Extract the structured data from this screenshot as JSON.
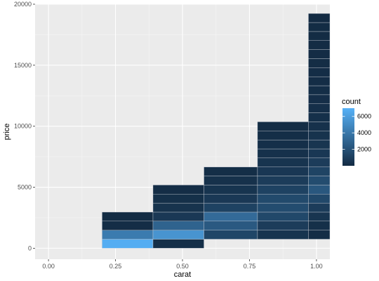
{
  "chart_data": {
    "type": "heatmap",
    "title": "",
    "xlabel": "carat",
    "ylabel": "price",
    "xlim": [
      -0.05,
      1.05
    ],
    "ylim": [
      -900,
      20000
    ],
    "x_ticks": [
      0.0,
      0.25,
      0.5,
      0.75,
      1.0
    ],
    "x_tick_labels": [
      "0.00",
      "0.25",
      "0.50",
      "0.75",
      "1.00"
    ],
    "y_ticks": [
      0,
      5000,
      10000,
      15000,
      20000
    ],
    "y_tick_labels": [
      "0",
      "5000",
      "10000",
      "15000",
      "20000"
    ],
    "grid": true,
    "legend": {
      "title": "count",
      "placement": "right",
      "min": 1,
      "max": 7000,
      "ticks": [
        2000,
        4000,
        6000
      ],
      "tick_labels": [
        "2000",
        "4000",
        "6000"
      ],
      "low_color": "#132b43",
      "high_color": "#56b1f7"
    },
    "tile_height": 740,
    "columns": [
      {
        "x_start": 0.2,
        "x_end": 0.39,
        "tiles": [
          {
            "y_start": 0,
            "count": 6800
          },
          {
            "y_start": 740,
            "count": 4200
          },
          {
            "y_start": 1480,
            "count": 120
          },
          {
            "y_start": 2220,
            "count": 40
          }
        ]
      },
      {
        "x_start": 0.39,
        "x_end": 0.58,
        "tiles": [
          {
            "y_start": 0,
            "count": 200
          },
          {
            "y_start": 740,
            "count": 5500
          },
          {
            "y_start": 1480,
            "count": 2900
          },
          {
            "y_start": 2220,
            "count": 700
          },
          {
            "y_start": 2960,
            "count": 400
          },
          {
            "y_start": 3700,
            "count": 250
          },
          {
            "y_start": 4440,
            "count": 120
          }
        ]
      },
      {
        "x_start": 0.58,
        "x_end": 0.78,
        "tiles": [
          {
            "y_start": 740,
            "count": 1400
          },
          {
            "y_start": 1480,
            "count": 2400
          },
          {
            "y_start": 2220,
            "count": 3300
          },
          {
            "y_start": 2960,
            "count": 1200
          },
          {
            "y_start": 3700,
            "count": 700
          },
          {
            "y_start": 4440,
            "count": 450
          },
          {
            "y_start": 5180,
            "count": 300
          },
          {
            "y_start": 5920,
            "count": 150
          }
        ]
      },
      {
        "x_start": 0.78,
        "x_end": 0.97,
        "tiles": [
          {
            "y_start": 740,
            "count": 450
          },
          {
            "y_start": 1480,
            "count": 900
          },
          {
            "y_start": 2220,
            "count": 1500
          },
          {
            "y_start": 2960,
            "count": 1700
          },
          {
            "y_start": 3700,
            "count": 1600
          },
          {
            "y_start": 4440,
            "count": 1200
          },
          {
            "y_start": 5180,
            "count": 900
          },
          {
            "y_start": 5920,
            "count": 650
          },
          {
            "y_start": 6660,
            "count": 450
          },
          {
            "y_start": 7400,
            "count": 330
          },
          {
            "y_start": 8140,
            "count": 220
          },
          {
            "y_start": 8880,
            "count": 150
          },
          {
            "y_start": 9620,
            "count": 90
          }
        ]
      },
      {
        "x_start": 0.97,
        "x_end": 1.05,
        "tiles": [
          {
            "y_start": 740,
            "count": 100
          },
          {
            "y_start": 1480,
            "count": 250
          },
          {
            "y_start": 2220,
            "count": 500
          },
          {
            "y_start": 2960,
            "count": 900
          },
          {
            "y_start": 3700,
            "count": 1500
          },
          {
            "y_start": 4440,
            "count": 2300
          },
          {
            "y_start": 5180,
            "count": 1700
          },
          {
            "y_start": 5920,
            "count": 1300
          },
          {
            "y_start": 6660,
            "count": 900
          },
          {
            "y_start": 7400,
            "count": 650
          },
          {
            "y_start": 8140,
            "count": 500
          },
          {
            "y_start": 8880,
            "count": 400
          },
          {
            "y_start": 9620,
            "count": 320
          },
          {
            "y_start": 10360,
            "count": 260
          },
          {
            "y_start": 11100,
            "count": 220
          },
          {
            "y_start": 11840,
            "count": 180
          },
          {
            "y_start": 12580,
            "count": 150
          },
          {
            "y_start": 13320,
            "count": 120
          },
          {
            "y_start": 14060,
            "count": 100
          },
          {
            "y_start": 14800,
            "count": 85
          },
          {
            "y_start": 15540,
            "count": 70
          },
          {
            "y_start": 16280,
            "count": 55
          },
          {
            "y_start": 17020,
            "count": 40
          },
          {
            "y_start": 17760,
            "count": 30
          },
          {
            "y_start": 18500,
            "count": 20
          }
        ]
      }
    ]
  }
}
